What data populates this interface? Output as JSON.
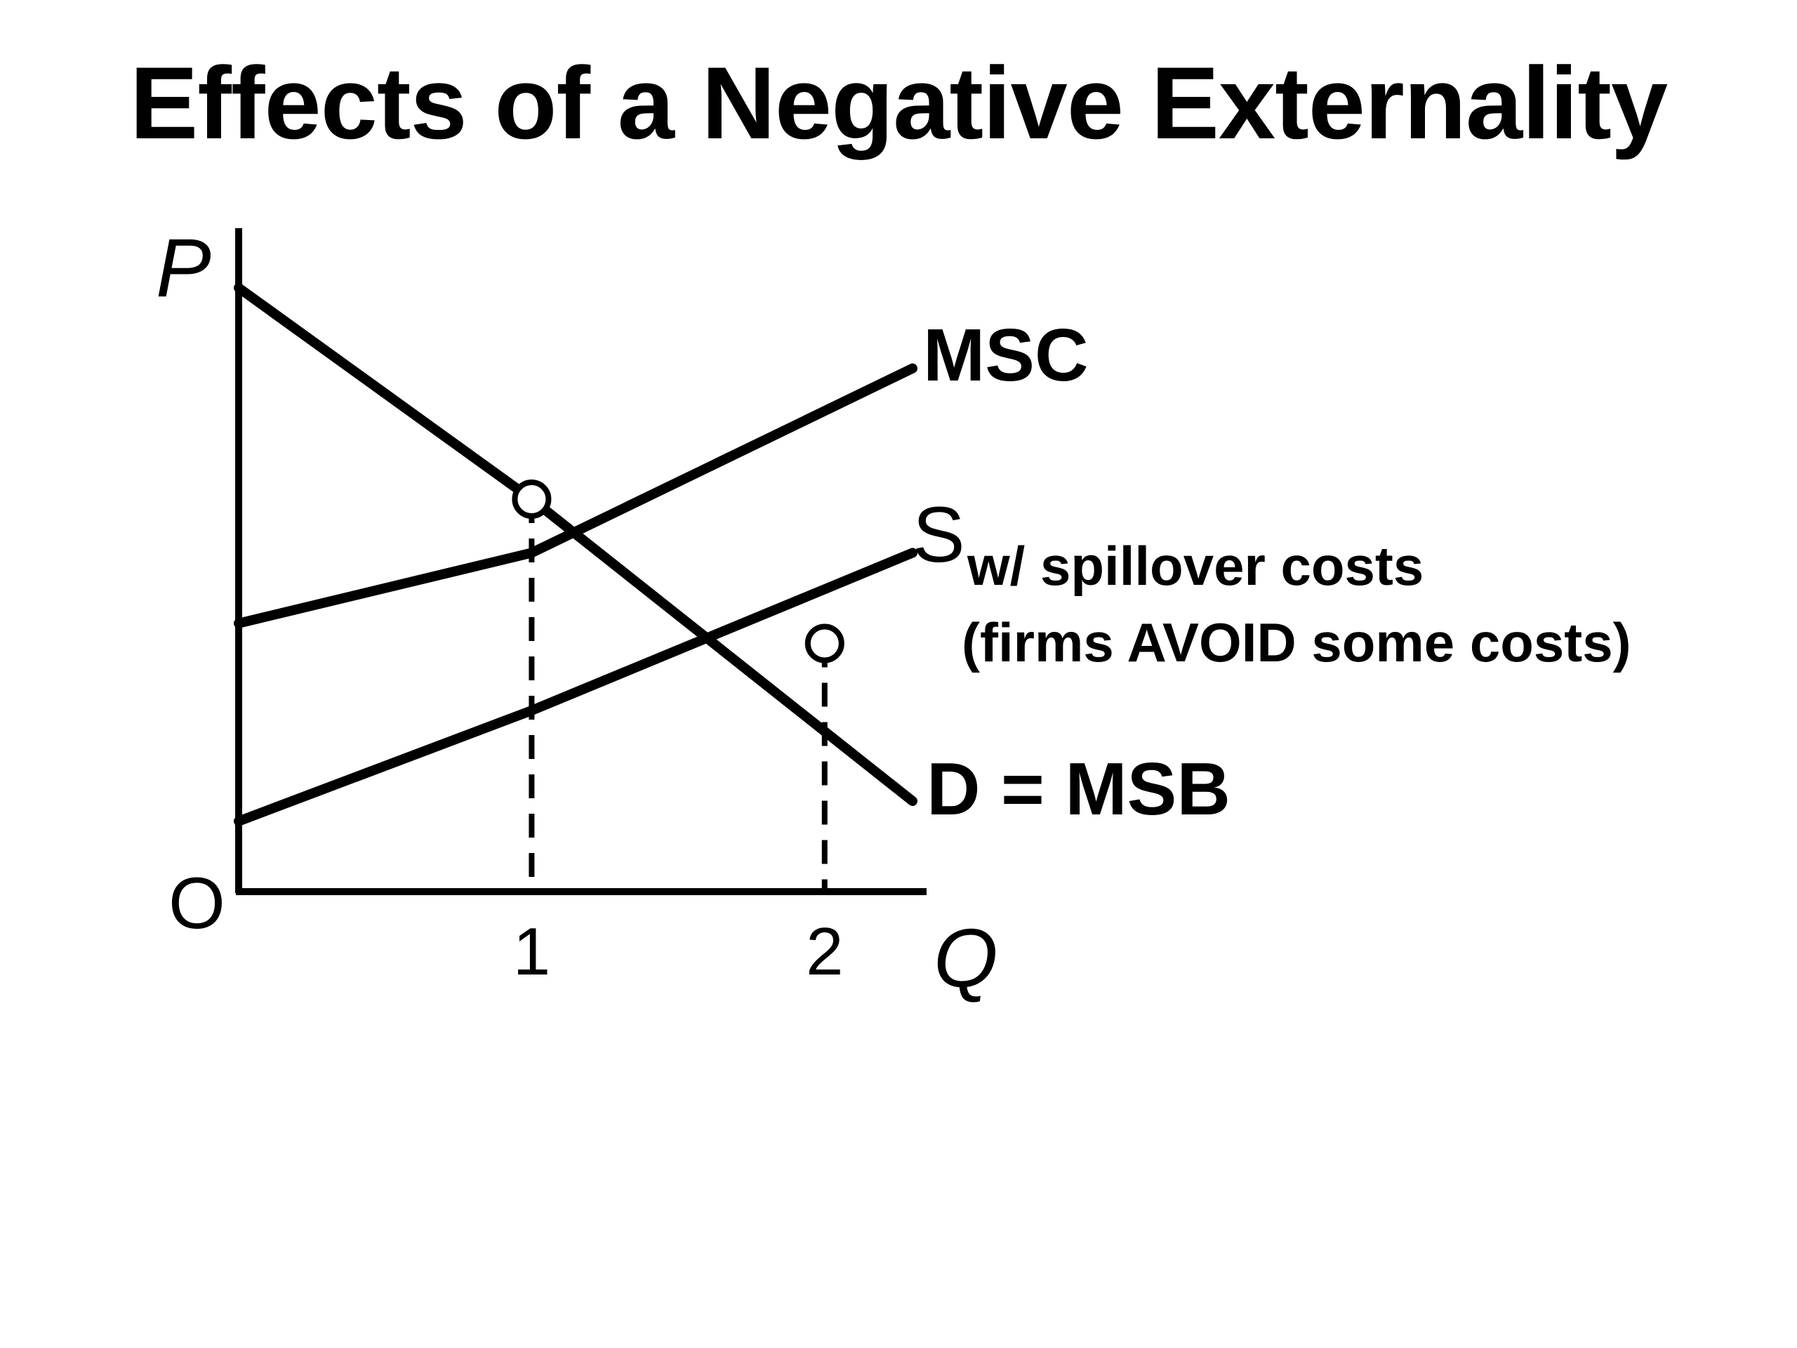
{
  "title": "Effects of a Negative Externality",
  "chart_data": {
    "type": "line",
    "xlabel": "Q",
    "ylabel": "P",
    "origin_label": "O",
    "x_ticks": [
      "1",
      "2"
    ],
    "series": [
      {
        "name": "MSC",
        "points": [
          [
            0,
            4.0
          ],
          [
            1,
            5.05
          ],
          [
            2.3,
            7.8
          ]
        ]
      },
      {
        "name": "S",
        "subscript": "w/ spillover costs",
        "note": "(firms AVOID some costs)",
        "points": [
          [
            0,
            1.05
          ],
          [
            1,
            2.7
          ],
          [
            2.3,
            5.05
          ]
        ]
      },
      {
        "name": "D = MSB",
        "points": [
          [
            0,
            9.0
          ],
          [
            1,
            5.85
          ],
          [
            2.3,
            1.35
          ]
        ]
      }
    ],
    "equilibria": [
      {
        "x": 1,
        "y": 5.85
      },
      {
        "x": 2,
        "y": 3.7
      }
    ],
    "xlim": [
      0,
      2.3
    ],
    "ylim": [
      0,
      9
    ]
  }
}
